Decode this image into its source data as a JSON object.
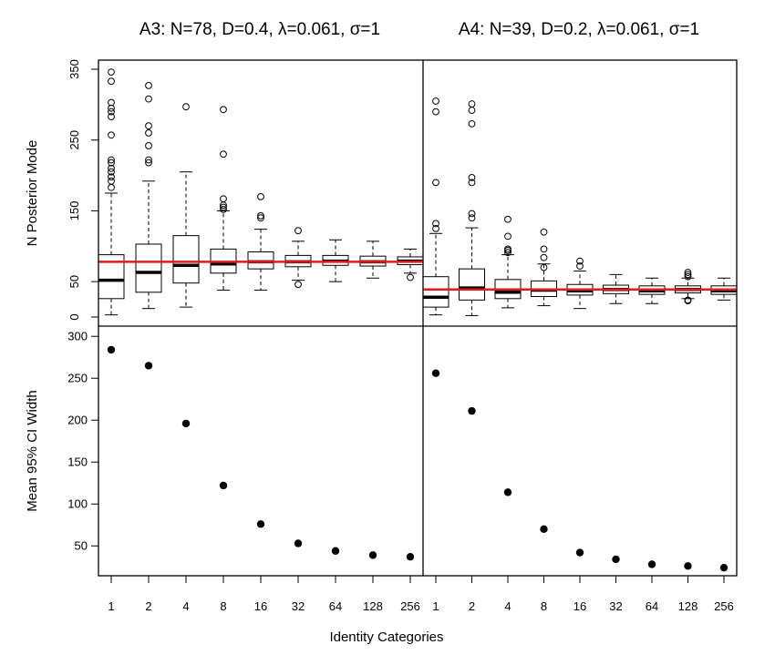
{
  "chart_data": [
    {
      "type": "box",
      "panel": "A3-top",
      "title": "A3: N=78, D=0.4, λ=0.061, σ=1",
      "ylabel": "N Posterior Mode",
      "ylim": [
        0,
        350
      ],
      "yticks": [
        0,
        50,
        150,
        250,
        350
      ],
      "categories": [
        "1",
        "2",
        "4",
        "8",
        "16",
        "32",
        "64",
        "128",
        "256"
      ],
      "reference_line": {
        "value": 78,
        "color": "#e41a1c"
      },
      "boxes": [
        {
          "whisker_low": 3,
          "q1": 26,
          "median": 52,
          "q3": 88,
          "whisker_high": 175,
          "outliers": [
            183,
            192,
            198,
            205,
            210,
            218,
            222,
            257,
            283,
            290,
            295,
            303,
            333,
            346
          ]
        },
        {
          "whisker_low": 12,
          "q1": 35,
          "median": 63,
          "q3": 103,
          "whisker_high": 192,
          "outliers": [
            218,
            222,
            242,
            260,
            270,
            308,
            327
          ]
        },
        {
          "whisker_low": 14,
          "q1": 48,
          "median": 73,
          "q3": 115,
          "whisker_high": 205,
          "outliers": [
            297
          ]
        },
        {
          "whisker_low": 38,
          "q1": 62,
          "median": 75,
          "q3": 96,
          "whisker_high": 150,
          "outliers": [
            152,
            155,
            158,
            167,
            230,
            293
          ]
        },
        {
          "whisker_low": 38,
          "q1": 68,
          "median": 78,
          "q3": 92,
          "whisker_high": 124,
          "outliers": [
            140,
            143,
            170
          ]
        },
        {
          "whisker_low": 52,
          "q1": 71,
          "median": 78,
          "q3": 87,
          "whisker_high": 107,
          "outliers": [
            46,
            122
          ]
        },
        {
          "whisker_low": 50,
          "q1": 73,
          "median": 79,
          "q3": 87,
          "whisker_high": 109
        },
        {
          "whisker_low": 55,
          "q1": 72,
          "median": 78,
          "q3": 86,
          "whisker_high": 107
        },
        {
          "whisker_low": 62,
          "q1": 74,
          "median": 79,
          "q3": 85,
          "whisker_high": 96,
          "outliers": [
            56
          ]
        }
      ]
    },
    {
      "type": "box",
      "panel": "A4-top",
      "title": "A4: N=39, D=0.2, λ=0.061, σ=1",
      "ylim": [
        0,
        350
      ],
      "categories": [
        "1",
        "2",
        "4",
        "8",
        "16",
        "32",
        "64",
        "128",
        "256"
      ],
      "reference_line": {
        "value": 39,
        "color": "#e41a1c"
      },
      "boxes": [
        {
          "whisker_low": 3,
          "q1": 14,
          "median": 28,
          "q3": 57,
          "whisker_high": 118,
          "outliers": [
            125,
            132,
            190,
            290,
            305
          ]
        },
        {
          "whisker_low": 2,
          "q1": 24,
          "median": 41,
          "q3": 68,
          "whisker_high": 126,
          "outliers": [
            140,
            146,
            190,
            197,
            273,
            292,
            301
          ]
        },
        {
          "whisker_low": 13,
          "q1": 26,
          "median": 35,
          "q3": 53,
          "whisker_high": 88,
          "outliers": [
            91,
            94,
            96,
            114,
            138
          ]
        },
        {
          "whisker_low": 16,
          "q1": 29,
          "median": 38,
          "q3": 51,
          "whisker_high": 75,
          "outliers": [
            70,
            84,
            96,
            120
          ]
        },
        {
          "whisker_low": 12,
          "q1": 31,
          "median": 37,
          "q3": 46,
          "whisker_high": 65,
          "outliers": [
            72,
            79
          ]
        },
        {
          "whisker_low": 19,
          "q1": 33,
          "median": 39,
          "q3": 45,
          "whisker_high": 60
        },
        {
          "whisker_low": 19,
          "q1": 32,
          "median": 37,
          "q3": 44,
          "whisker_high": 55
        },
        {
          "whisker_low": 26,
          "q1": 34,
          "median": 39,
          "q3": 44,
          "whisker_high": 55,
          "outliers": [
            23,
            24,
            57,
            60,
            63
          ]
        },
        {
          "whisker_low": 24,
          "q1": 32,
          "median": 37,
          "q3": 44,
          "whisker_high": 55
        }
      ]
    },
    {
      "type": "scatter",
      "panel": "A3-bottom",
      "ylabel": "Mean 95% CI Width",
      "ylim": [
        22,
        310
      ],
      "yticks": [
        50,
        100,
        150,
        200,
        250,
        300
      ],
      "categories": [
        "1",
        "2",
        "4",
        "8",
        "16",
        "32",
        "64",
        "128",
        "256"
      ],
      "values": [
        284,
        265,
        196,
        122,
        76,
        53,
        44,
        39,
        37
      ]
    },
    {
      "type": "scatter",
      "panel": "A4-bottom",
      "ylim": [
        22,
        310
      ],
      "categories": [
        "1",
        "2",
        "4",
        "8",
        "16",
        "32",
        "64",
        "128",
        "256"
      ],
      "values": [
        256,
        211,
        114,
        70,
        42,
        34,
        28,
        26,
        24
      ]
    }
  ],
  "xlabel": "Identity Categories"
}
